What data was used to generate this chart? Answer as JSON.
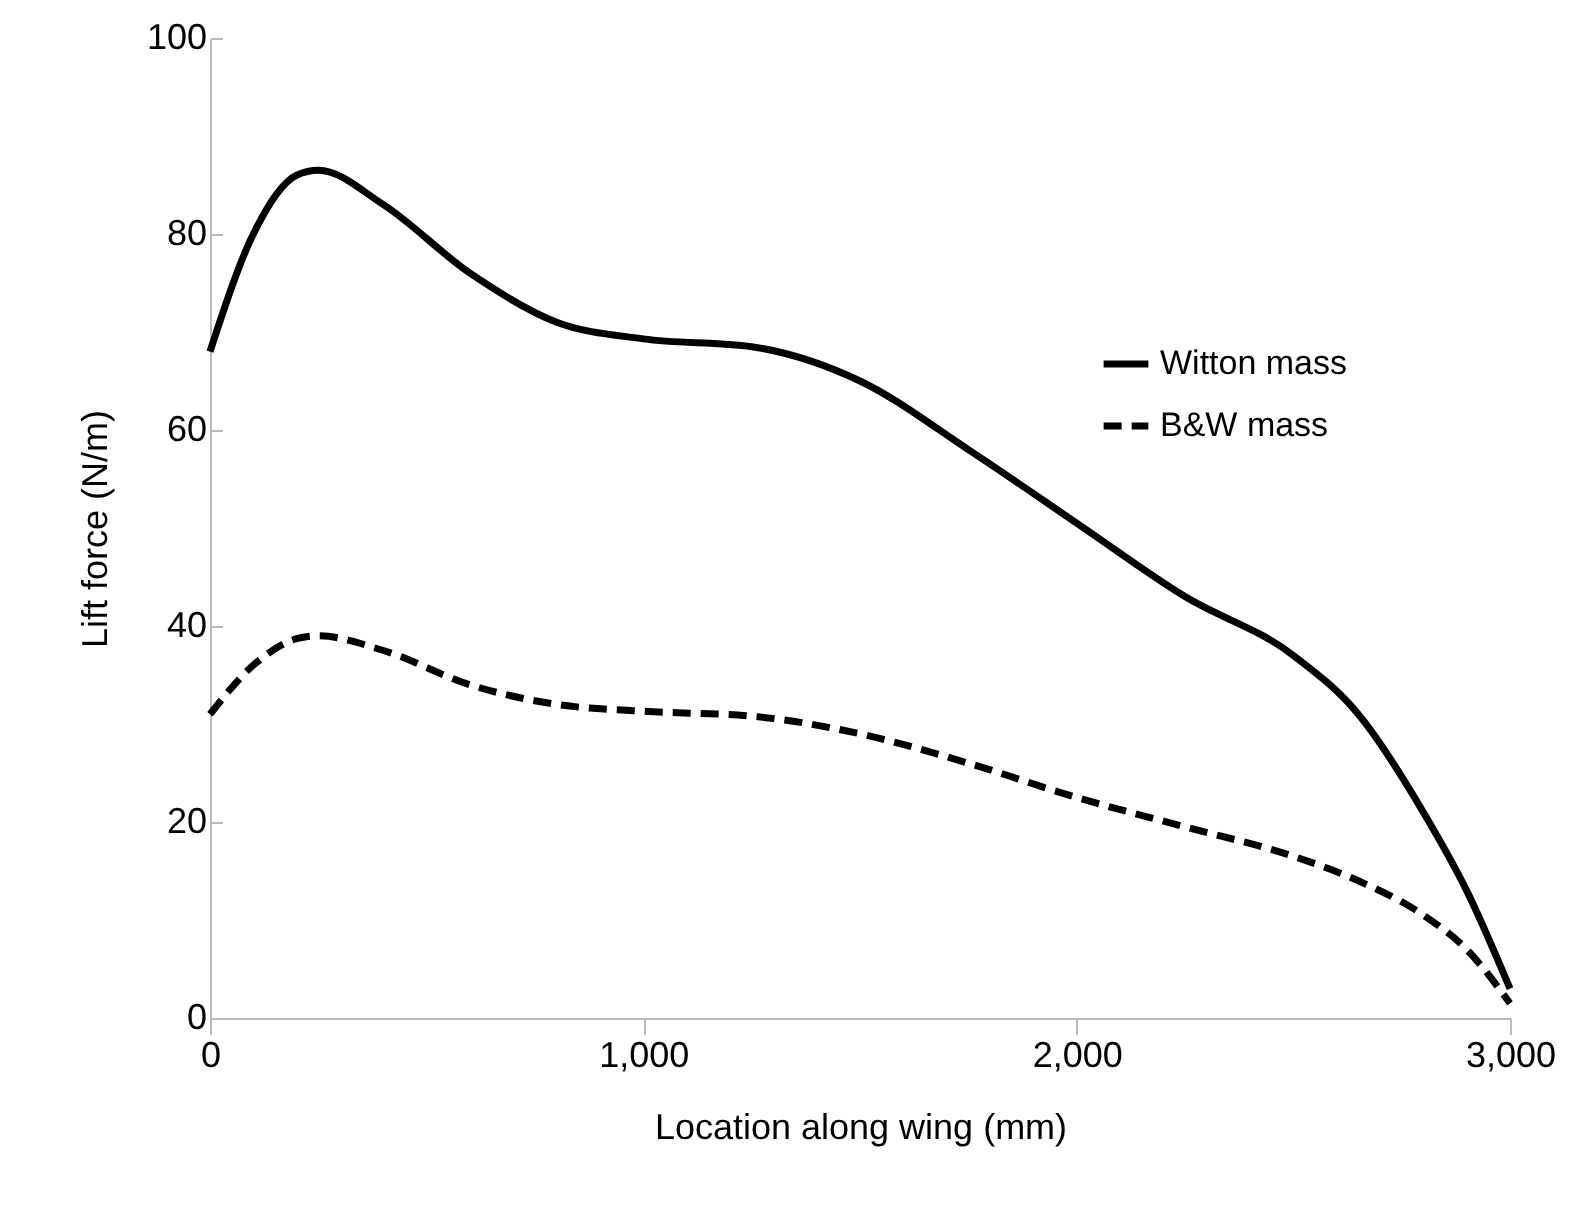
{
  "chart_data": {
    "type": "line",
    "xlabel": "Location along wing (mm)",
    "ylabel": "Lift force (N/m)",
    "xlim": [
      0,
      3000
    ],
    "xticks": [
      0,
      {
        "value": 1000,
        "label": "1,000"
      },
      {
        "value": 2000,
        "label": "2,000"
      },
      {
        "value": 3000,
        "label": "3,000"
      }
    ],
    "ylim": [
      0,
      100
    ],
    "yticks": [
      0,
      20,
      40,
      60,
      80,
      100
    ],
    "x": [
      0,
      100,
      200,
      250,
      400,
      600,
      800,
      1000,
      1250,
      1500,
      1750,
      2000,
      2250,
      2500,
      2650,
      2800,
      2900,
      3000
    ],
    "series": [
      {
        "name": "Witton mass",
        "color": "#000000",
        "line_style": "solid",
        "values": [
          68,
          80,
          86,
          86.5,
          83,
          76,
          71,
          69.3,
          68.5,
          65,
          58,
          50.5,
          43,
          37,
          31,
          21,
          13,
          3
        ]
      },
      {
        "name": "B&W mass",
        "color": "#000000",
        "line_style": "dashed",
        "values": [
          31,
          36,
          38.7,
          39,
          37.5,
          34,
          32,
          31.3,
          30.8,
          29,
          26,
          22.5,
          19.5,
          16.5,
          14,
          10.5,
          7,
          1.5
        ]
      }
    ],
    "legend": "right",
    "grid": false,
    "marker": "none"
  }
}
